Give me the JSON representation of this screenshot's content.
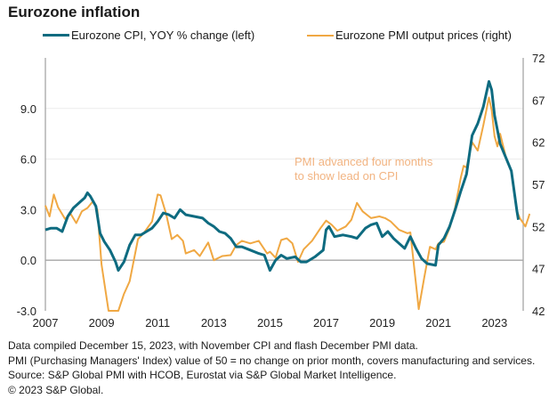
{
  "chart_data": {
    "type": "line",
    "title": "Eurozone inflation",
    "xlabel": "",
    "ylabel_left": "",
    "ylabel_right": "",
    "x_ticks": [
      "2007",
      "2009",
      "2011",
      "2013",
      "2015",
      "2017",
      "2019",
      "2021",
      "2023"
    ],
    "x_range": [
      2007.0,
      2024.25
    ],
    "y_left": {
      "range": [
        -3.0,
        12.0
      ],
      "ticks": [
        "-3.0",
        "0.0",
        "3.0",
        "6.0",
        "9.0"
      ],
      "tick_values": [
        -3,
        0,
        3,
        6,
        9
      ]
    },
    "y_right": {
      "range": [
        42,
        72
      ],
      "ticks": [
        "42",
        "47",
        "52",
        "57",
        "62",
        "67",
        "72"
      ],
      "tick_values": [
        42,
        47,
        52,
        57,
        62,
        67,
        72
      ]
    },
    "grid": true,
    "legend": "top",
    "series": [
      {
        "name": "Eurozone CPI, YOY % change (left)",
        "axis": "left",
        "color": "#0e6b80",
        "points": [
          [
            2007.0,
            1.8
          ],
          [
            2007.2,
            1.9
          ],
          [
            2007.4,
            1.9
          ],
          [
            2007.6,
            1.7
          ],
          [
            2007.8,
            2.6
          ],
          [
            2008.0,
            3.1
          ],
          [
            2008.2,
            3.4
          ],
          [
            2008.4,
            3.7
          ],
          [
            2008.5,
            4.0
          ],
          [
            2008.6,
            3.8
          ],
          [
            2008.8,
            3.2
          ],
          [
            2008.95,
            1.6
          ],
          [
            2009.1,
            1.1
          ],
          [
            2009.3,
            0.6
          ],
          [
            2009.5,
            -0.1
          ],
          [
            2009.6,
            -0.6
          ],
          [
            2009.8,
            -0.1
          ],
          [
            2010.0,
            0.9
          ],
          [
            2010.2,
            1.5
          ],
          [
            2010.4,
            1.5
          ],
          [
            2010.6,
            1.7
          ],
          [
            2010.8,
            1.9
          ],
          [
            2011.0,
            2.3
          ],
          [
            2011.2,
            2.8
          ],
          [
            2011.4,
            2.7
          ],
          [
            2011.6,
            2.5
          ],
          [
            2011.8,
            3.0
          ],
          [
            2012.0,
            2.7
          ],
          [
            2012.3,
            2.6
          ],
          [
            2012.6,
            2.5
          ],
          [
            2012.8,
            2.2
          ],
          [
            2013.0,
            2.0
          ],
          [
            2013.2,
            1.7
          ],
          [
            2013.4,
            1.6
          ],
          [
            2013.6,
            1.3
          ],
          [
            2013.8,
            0.8
          ],
          [
            2014.0,
            0.8
          ],
          [
            2014.3,
            0.6
          ],
          [
            2014.6,
            0.4
          ],
          [
            2014.8,
            0.3
          ],
          [
            2015.0,
            -0.6
          ],
          [
            2015.2,
            0.0
          ],
          [
            2015.4,
            0.3
          ],
          [
            2015.6,
            0.1
          ],
          [
            2015.9,
            0.2
          ],
          [
            2016.1,
            -0.1
          ],
          [
            2016.3,
            -0.1
          ],
          [
            2016.6,
            0.2
          ],
          [
            2016.9,
            0.6
          ],
          [
            2017.0,
            1.8
          ],
          [
            2017.1,
            2.0
          ],
          [
            2017.3,
            1.4
          ],
          [
            2017.6,
            1.5
          ],
          [
            2017.9,
            1.4
          ],
          [
            2018.1,
            1.3
          ],
          [
            2018.4,
            1.9
          ],
          [
            2018.6,
            2.1
          ],
          [
            2018.8,
            2.2
          ],
          [
            2019.0,
            1.4
          ],
          [
            2019.2,
            1.7
          ],
          [
            2019.4,
            1.3
          ],
          [
            2019.6,
            1.0
          ],
          [
            2019.8,
            0.7
          ],
          [
            2020.0,
            1.4
          ],
          [
            2020.2,
            0.7
          ],
          [
            2020.4,
            0.1
          ],
          [
            2020.6,
            -0.2
          ],
          [
            2020.9,
            -0.3
          ],
          [
            2021.0,
            0.9
          ],
          [
            2021.2,
            1.3
          ],
          [
            2021.4,
            2.0
          ],
          [
            2021.6,
            3.0
          ],
          [
            2021.8,
            4.1
          ],
          [
            2022.0,
            5.1
          ],
          [
            2022.2,
            7.4
          ],
          [
            2022.4,
            8.1
          ],
          [
            2022.6,
            9.1
          ],
          [
            2022.8,
            10.6
          ],
          [
            2022.9,
            10.1
          ],
          [
            2023.0,
            8.6
          ],
          [
            2023.2,
            6.9
          ],
          [
            2023.4,
            6.1
          ],
          [
            2023.6,
            5.3
          ],
          [
            2023.8,
            2.9
          ],
          [
            2023.85,
            2.4
          ]
        ]
      },
      {
        "name": "Eurozone PMI output prices (right)",
        "axis": "right",
        "color": "#f0a843",
        "points": [
          [
            2007.0,
            54.5
          ],
          [
            2007.15,
            53.2
          ],
          [
            2007.3,
            55.8
          ],
          [
            2007.45,
            54.3
          ],
          [
            2007.7,
            52.9
          ],
          [
            2007.9,
            53.5
          ],
          [
            2008.1,
            52.4
          ],
          [
            2008.3,
            53.8
          ],
          [
            2008.5,
            54.2
          ],
          [
            2008.7,
            55.0
          ],
          [
            2008.85,
            54.0
          ],
          [
            2009.0,
            47.5
          ],
          [
            2009.25,
            42.0
          ],
          [
            2009.6,
            42.0
          ],
          [
            2009.8,
            44.0
          ],
          [
            2010.0,
            45.5
          ],
          [
            2010.3,
            50.5
          ],
          [
            2010.5,
            51.2
          ],
          [
            2010.8,
            52.6
          ],
          [
            2011.0,
            55.8
          ],
          [
            2011.1,
            55.7
          ],
          [
            2011.3,
            53.5
          ],
          [
            2011.5,
            50.5
          ],
          [
            2011.7,
            51.0
          ],
          [
            2011.9,
            50.3
          ],
          [
            2012.0,
            48.8
          ],
          [
            2012.3,
            49.2
          ],
          [
            2012.5,
            48.5
          ],
          [
            2012.8,
            50.1
          ],
          [
            2013.0,
            48.0
          ],
          [
            2013.3,
            48.5
          ],
          [
            2013.6,
            48.6
          ],
          [
            2013.8,
            49.8
          ],
          [
            2014.0,
            50.3
          ],
          [
            2014.3,
            50.0
          ],
          [
            2014.6,
            50.3
          ],
          [
            2014.9,
            48.8
          ],
          [
            2015.0,
            49.0
          ],
          [
            2015.2,
            48.3
          ],
          [
            2015.4,
            50.4
          ],
          [
            2015.6,
            50.6
          ],
          [
            2015.8,
            50.0
          ],
          [
            2016.0,
            47.8
          ],
          [
            2016.2,
            49.3
          ],
          [
            2016.5,
            50.3
          ],
          [
            2016.8,
            51.8
          ],
          [
            2017.0,
            52.7
          ],
          [
            2017.2,
            52.2
          ],
          [
            2017.4,
            51.5
          ],
          [
            2017.7,
            52.0
          ],
          [
            2017.9,
            52.8
          ],
          [
            2018.1,
            54.8
          ],
          [
            2018.3,
            53.8
          ],
          [
            2018.6,
            53.0
          ],
          [
            2018.9,
            53.2
          ],
          [
            2019.1,
            53.0
          ],
          [
            2019.3,
            52.6
          ],
          [
            2019.6,
            51.6
          ],
          [
            2019.9,
            51.2
          ],
          [
            2020.0,
            51.3
          ],
          [
            2020.3,
            42.2
          ],
          [
            2020.5,
            46.0
          ],
          [
            2020.7,
            49.6
          ],
          [
            2020.9,
            49.3
          ],
          [
            2021.0,
            50.0
          ],
          [
            2021.2,
            50.2
          ],
          [
            2021.4,
            51.8
          ],
          [
            2021.6,
            54.3
          ],
          [
            2021.8,
            57.8
          ],
          [
            2021.9,
            59.2
          ],
          [
            2022.0,
            59.0
          ],
          [
            2022.2,
            62.0
          ],
          [
            2022.4,
            61.0
          ],
          [
            2022.6,
            64.0
          ],
          [
            2022.8,
            67.3
          ],
          [
            2022.9,
            65.8
          ],
          [
            2023.0,
            62.7
          ],
          [
            2023.1,
            61.5
          ],
          [
            2023.2,
            63.0
          ],
          [
            2023.4,
            60.3
          ],
          [
            2023.6,
            58.5
          ],
          [
            2023.8,
            53.8
          ],
          [
            2023.9,
            53.0
          ],
          [
            2024.0,
            52.5
          ],
          [
            2024.1,
            52.0
          ],
          [
            2024.2,
            53.0
          ],
          [
            2024.25,
            53.5
          ]
        ]
      }
    ],
    "annotation": "PMI advanced four months\nto show lead on CPI"
  },
  "title": "Eurozone inflation",
  "legend": {
    "cpi_label": "Eurozone CPI, YOY % change (left)",
    "pmi_label": "Eurozone PMI output prices (right)"
  },
  "annotation": {
    "line1": "PMI advanced four months",
    "line2": "to show lead on CPI"
  },
  "footer": {
    "line1": "Data compiled December 15, 2023, with November CPI and flash December PMI data.",
    "line2": "PMI (Purchasing Managers' Index) value of 50 = no change on prior month, covers manufacturing and services.",
    "line3": "Source: S&P Global PMI with HCOB, Eurostat via S&P Global Market Intelligence.",
    "line4": "© 2023 S&P Global."
  }
}
